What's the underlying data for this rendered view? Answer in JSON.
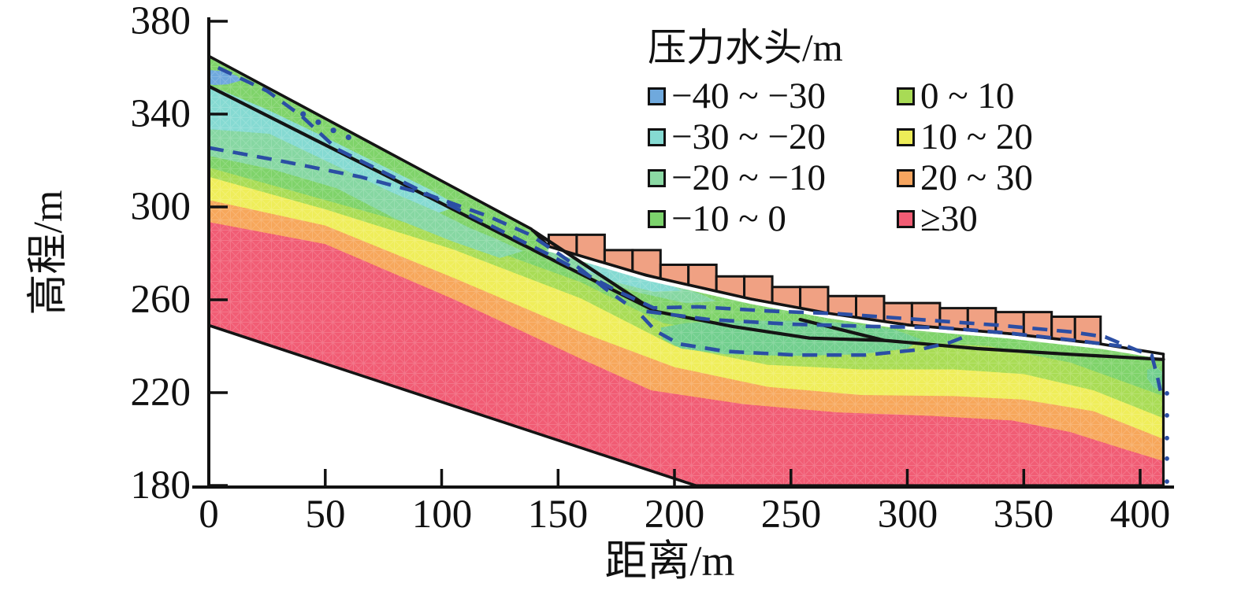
{
  "legend": {
    "title": "压力水头/m",
    "columns": [
      [
        {
          "label": "−40 ~ −30",
          "color": "#6FA9DD"
        },
        {
          "label": "−30 ~ −20",
          "color": "#85DAD2"
        },
        {
          "label": "−20 ~ −10",
          "color": "#8BD9A4"
        },
        {
          "label": "−10 ~ 0",
          "color": "#7CD36C"
        }
      ],
      [
        {
          "label": "0 ~ 10",
          "color": "#A8DB55"
        },
        {
          "label": "10 ~ 20",
          "color": "#EDEC58"
        },
        {
          "label": "20 ~ 30",
          "color": "#F6A55F"
        },
        {
          "label": "≥30",
          "color": "#F15C74"
        }
      ]
    ]
  },
  "axes": {
    "x": {
      "label": "距离/m",
      "min": 0,
      "max": 410,
      "ticks": [
        0,
        50,
        100,
        150,
        200,
        250,
        300,
        350,
        400
      ]
    },
    "y": {
      "label": "高程/m",
      "min": 180,
      "max": 380,
      "ticks": [
        380,
        340,
        300,
        260,
        220,
        180
      ]
    }
  },
  "chart_data": {
    "type": "heatmap",
    "subtype": "filled-contour slope cross-section with FEM mesh, pressure head bands",
    "title": "压力水头/m",
    "xlabel": "距离/m",
    "ylabel": "高程/m",
    "xlim": [
      0,
      410
    ],
    "ylim": [
      180,
      380
    ],
    "grid": false,
    "legend_position": "top-center, two columns",
    "bands": [
      {
        "range": "−40 ~ −30",
        "color": "#6FA9DD"
      },
      {
        "range": "−30 ~ −20",
        "color": "#85DAD2"
      },
      {
        "range": "−20 ~ −10",
        "color": "#8BD9A4"
      },
      {
        "range": "−10 ~ 0",
        "color": "#7CD36C"
      },
      {
        "range": "0 ~ 10",
        "color": "#A8DB55"
      },
      {
        "range": "10 ~ 20",
        "color": "#EDEC58"
      },
      {
        "range": "20 ~ 30",
        "color": "#F6A55F"
      },
      {
        "range": "≥30",
        "color": "#F15C74"
      }
    ],
    "colors": {
      "red": "#F15C74",
      "orange": "#F7A75B",
      "yellow": "#EFEE5A",
      "yellow_green": "#A9DC55",
      "green": "#7FD36A",
      "seafoam": "#86D7A2",
      "cyan": "#85DAD2",
      "blue": "#6FA9DD",
      "pocket": "#72CF8E",
      "blocks": "#F0A183",
      "dash_blue": "#2B4EA4",
      "line": "#141414",
      "gap_white": "#ffffff"
    },
    "geometry": {
      "domain": [
        [
          0,
          365
        ],
        [
          138.5,
          290.5
        ],
        [
          146,
          283
        ],
        [
          188,
          270.5
        ],
        [
          233,
          260.3
        ],
        [
          266,
          254.2
        ],
        [
          300,
          249.2
        ],
        [
          344,
          245.4
        ],
        [
          383,
          241
        ],
        [
          410,
          236.6
        ],
        [
          410,
          180
        ],
        [
          209,
          180
        ],
        [
          0,
          249
        ]
      ],
      "surface_upper": [
        [
          0,
          365
        ],
        [
          138.5,
          290.5
        ],
        [
          146,
          283
        ]
      ],
      "berm_base": [
        [
          146,
          283
        ],
        [
          188,
          270.5
        ],
        [
          233,
          260.3
        ],
        [
          266,
          254.2
        ],
        [
          300,
          249.2
        ],
        [
          344,
          245.4
        ],
        [
          383,
          241
        ],
        [
          410,
          236.6
        ]
      ],
      "lower_boundary": [
        [
          0,
          249
        ],
        [
          209,
          180
        ]
      ],
      "bottom_edge": [
        [
          209,
          180
        ],
        [
          410,
          180
        ]
      ],
      "right_edge": [
        [
          410,
          236.6
        ],
        [
          410,
          180
        ]
      ],
      "t_red": [
        [
          0,
          293.5
        ],
        [
          50,
          284
        ],
        [
          105,
          260.3
        ],
        [
          160,
          234.5
        ],
        [
          190,
          221
        ],
        [
          230,
          215
        ],
        [
          270,
          211.5
        ],
        [
          310,
          210
        ],
        [
          345,
          208
        ],
        [
          370,
          203
        ],
        [
          392,
          196
        ],
        [
          410,
          190.5
        ]
      ],
      "t_orange": [
        [
          0,
          303
        ],
        [
          50,
          292
        ],
        [
          105,
          269.5
        ],
        [
          160,
          246
        ],
        [
          200,
          231
        ],
        [
          240,
          222.5
        ],
        [
          280,
          219
        ],
        [
          320,
          218.5
        ],
        [
          350,
          217
        ],
        [
          380,
          212
        ],
        [
          410,
          200
        ]
      ],
      "t_yellow": [
        [
          0,
          313
        ],
        [
          50,
          299
        ],
        [
          105,
          281.7
        ],
        [
          160,
          260.5
        ],
        [
          200,
          240
        ],
        [
          240,
          232
        ],
        [
          280,
          230
        ],
        [
          320,
          230
        ],
        [
          350,
          228
        ],
        [
          380,
          221
        ],
        [
          410,
          209
        ]
      ],
      "t_yellowgreen": [
        [
          0,
          317
        ],
        [
          50,
          303
        ],
        [
          105,
          287.5
        ],
        [
          160,
          267.5
        ],
        [
          195,
          250
        ],
        [
          230,
          244
        ],
        [
          265,
          242
        ],
        [
          300,
          242
        ],
        [
          335,
          240
        ],
        [
          370,
          233
        ],
        [
          410,
          218.5
        ]
      ],
      "cyan_strip": [
        [
          0,
          352.5
        ],
        [
          25,
          342
        ],
        [
          50,
          330
        ],
        [
          75,
          317.5
        ],
        [
          95,
          307.5
        ],
        [
          107,
          300.5
        ],
        [
          99,
          297.5
        ],
        [
          78,
          306.5
        ],
        [
          52,
          319
        ],
        [
          26,
          331.5
        ],
        [
          0,
          333.5
        ]
      ],
      "seafoam_strip": [
        [
          0,
          333.5
        ],
        [
          26,
          331.5
        ],
        [
          52,
          319
        ],
        [
          78,
          306.5
        ],
        [
          99,
          297.5
        ],
        [
          112,
          291
        ],
        [
          124,
          286
        ],
        [
          135,
          281
        ],
        [
          125,
          278
        ],
        [
          105,
          285
        ],
        [
          80,
          295
        ],
        [
          55,
          308
        ],
        [
          28,
          316
        ],
        [
          0,
          322
        ]
      ],
      "blue_patch": [
        [
          0,
          359
        ],
        [
          6,
          358.5
        ],
        [
          12,
          356.5
        ],
        [
          14,
          354.5
        ],
        [
          8,
          352.8
        ],
        [
          2,
          352.5
        ],
        [
          0,
          353
        ]
      ],
      "seafoam_lens": [
        [
          145,
          282
        ],
        [
          165,
          276
        ],
        [
          190,
          269
        ],
        [
          210,
          263
        ],
        [
          218,
          259.5
        ],
        [
          205,
          258.5
        ],
        [
          185,
          263
        ],
        [
          160,
          271
        ],
        [
          146,
          278.5
        ]
      ],
      "cyan_lens": [
        [
          163,
          276
        ],
        [
          180,
          272
        ],
        [
          196,
          267.5
        ],
        [
          203,
          264
        ],
        [
          191,
          263.5
        ],
        [
          175,
          267.5
        ],
        [
          162,
          272.5
        ]
      ],
      "green_pocket": [
        [
          194,
          248
        ],
        [
          205,
          250
        ],
        [
          225,
          251
        ],
        [
          250,
          251
        ],
        [
          275,
          250
        ],
        [
          295,
          247
        ],
        [
          306,
          243
        ],
        [
          300,
          239
        ],
        [
          280,
          236.5
        ],
        [
          250,
          235.8
        ],
        [
          222,
          236.5
        ],
        [
          203,
          239
        ],
        [
          195,
          243
        ]
      ],
      "edge_pocket": [
        [
          403,
          230
        ],
        [
          407,
          231
        ],
        [
          409.5,
          229
        ],
        [
          409.5,
          221
        ],
        [
          406,
          222
        ],
        [
          403,
          226
        ]
      ],
      "slip_main": [
        [
          0,
          352
        ],
        [
          100,
          301.5
        ],
        [
          150,
          276
        ],
        [
          192,
          255
        ],
        [
          225,
          248.5
        ],
        [
          258,
          243.5
        ],
        [
          290,
          242.5
        ],
        [
          330,
          239
        ],
        [
          370,
          236.5
        ],
        [
          410,
          234.3
        ]
      ],
      "slip_secondary": [
        [
          139,
          290
        ],
        [
          191,
          255.5
        ]
      ],
      "slip_branch": [
        [
          254,
          251.5
        ],
        [
          290,
          242.5
        ]
      ],
      "phreatic_upper": [
        [
          4,
          360
        ],
        [
          25,
          350
        ],
        [
          40,
          339
        ],
        [
          55,
          325
        ],
        [
          85,
          310
        ],
        [
          115,
          295
        ],
        [
          145,
          280
        ],
        [
          175,
          264
        ],
        [
          191,
          256.5
        ],
        [
          210,
          257
        ],
        [
          240,
          255.2
        ],
        [
          270,
          254
        ],
        [
          305,
          251.5
        ],
        [
          340,
          249
        ],
        [
          370,
          246.2
        ],
        [
          385,
          244
        ],
        [
          398,
          238.5
        ],
        [
          405,
          236
        ],
        [
          407.7,
          225.5
        ],
        [
          408.7,
          220.8
        ]
      ],
      "phreatic_left": [
        [
          0,
          325.5
        ],
        [
          30,
          320
        ],
        [
          65,
          313
        ],
        [
          95,
          305
        ],
        [
          120,
          296
        ],
        [
          138,
          288
        ],
        [
          150,
          280
        ],
        [
          160,
          273
        ],
        [
          170,
          265
        ],
        [
          179,
          258.5
        ]
      ],
      "pocket_dash_upper": [
        [
          188,
          255
        ],
        [
          215,
          251.5
        ],
        [
          250,
          249.5
        ],
        [
          285,
          248.5
        ],
        [
          315,
          248
        ],
        [
          345,
          245.5
        ],
        [
          372,
          242.5
        ],
        [
          392,
          240
        ]
      ],
      "pocket_dash_lower": [
        [
          186,
          253
        ],
        [
          192,
          246.5
        ],
        [
          202,
          241
        ],
        [
          222,
          237.8
        ],
        [
          252,
          236.2
        ],
        [
          282,
          236.2
        ],
        [
          305,
          238.5
        ],
        [
          318,
          241.5
        ],
        [
          327,
          245
        ]
      ],
      "dotted_points": [
        [
          40.5,
          340
        ],
        [
          47,
          336.5
        ],
        [
          53.5,
          333
        ],
        [
          60,
          330
        ]
      ],
      "edge_dots": [
        [
          411.5,
          219.7
        ],
        [
          411.5,
          210.2
        ],
        [
          411.5,
          200.4
        ],
        [
          411.5,
          191.6
        ],
        [
          411.5,
          181.7
        ]
      ],
      "blocks": [
        [
          146,
          158,
          288
        ],
        [
          158,
          170,
          288
        ],
        [
          170,
          182,
          281.4
        ],
        [
          182,
          194,
          281.4
        ],
        [
          194,
          206,
          275.1
        ],
        [
          206,
          218,
          275.1
        ],
        [
          218,
          230,
          270.1
        ],
        [
          230,
          242,
          270.1
        ],
        [
          242,
          254,
          265.5
        ],
        [
          254,
          266,
          265.5
        ],
        [
          266,
          278,
          261.6
        ],
        [
          278,
          290,
          261.6
        ],
        [
          290,
          302,
          258.6
        ],
        [
          302,
          314,
          258.6
        ],
        [
          314,
          326,
          256.4
        ],
        [
          326,
          338,
          256.4
        ],
        [
          338,
          350,
          254.7
        ],
        [
          350,
          362,
          254.7
        ],
        [
          362,
          372,
          252.7
        ],
        [
          372,
          383,
          252.7
        ]
      ]
    },
    "annotations": {
      "black_lines": "ground surface, model boundary, main slip surface and secondary slip wedge lines",
      "salmon_blocks": "stepped revetment / support blocks along the bench surface",
      "blue_dashed": "phreatic (zero pressure head) contour lines",
      "white_band": "thin gap between block footing line and contour field"
    }
  }
}
